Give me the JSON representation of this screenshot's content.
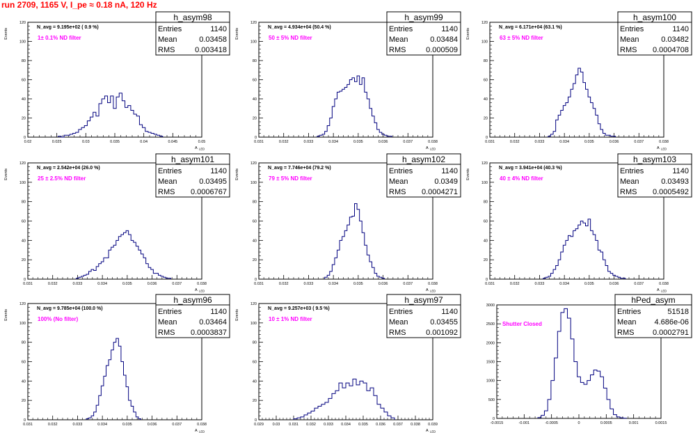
{
  "run_title": "run 2709,  1165 V, I_pe ≈ 0.18 nA, 120 Hz",
  "colors": {
    "histogram": "#00007f",
    "annotation": "#ff00ff",
    "title": "#ff0000",
    "text": "#000000"
  },
  "chart_data": [
    {
      "type": "histogram",
      "name": "h_asym98",
      "header": "N_avg = 9.195e+02 ( 0.9 %)",
      "filter_label": "1± 0.1% ND filter",
      "ylabel": "Events",
      "xlabel": "A",
      "xlabel_sub": "LED",
      "xlim": [
        0.02,
        0.05
      ],
      "ylim": [
        0,
        120
      ],
      "xticks": [
        "0.02",
        "0.025",
        "0.03",
        "0.035",
        "0.04",
        "0.045",
        "0.05"
      ],
      "xtick_values": [
        0.02,
        0.025,
        0.03,
        0.035,
        0.04,
        0.045,
        0.05
      ],
      "yticks": [
        "0",
        "20",
        "40",
        "60",
        "80",
        "100",
        "120"
      ],
      "ytick_values": [
        0,
        20,
        40,
        60,
        80,
        100,
        120
      ],
      "stats": [
        [
          "Entries",
          "1140"
        ],
        [
          "Mean",
          "0.03458"
        ],
        [
          "RMS",
          "0.003418"
        ]
      ],
      "x": [
        0.0255,
        0.026,
        0.0265,
        0.027,
        0.0275,
        0.028,
        0.0285,
        0.029,
        0.0295,
        0.03,
        0.0305,
        0.031,
        0.0315,
        0.032,
        0.0325,
        0.033,
        0.0335,
        0.034,
        0.0345,
        0.035,
        0.0355,
        0.036,
        0.0365,
        0.037,
        0.0375,
        0.038,
        0.0385,
        0.039,
        0.0395,
        0.04,
        0.0405,
        0.041,
        0.0415,
        0.042,
        0.0425,
        0.043
      ],
      "values": [
        1,
        0,
        2,
        2,
        3,
        4,
        5,
        8,
        10,
        12,
        17,
        21,
        26,
        22,
        35,
        40,
        43,
        36,
        43,
        30,
        42,
        46,
        38,
        31,
        33,
        28,
        24,
        22,
        13,
        10,
        6,
        5,
        4,
        3,
        2,
        1
      ]
    },
    {
      "type": "histogram",
      "name": "h_asym99",
      "header": "N_avg = 4.934e+04 (50.4 %)",
      "filter_label": "50 ± 5% ND filter",
      "ylabel": "Events",
      "xlabel": "A",
      "xlabel_sub": "LED",
      "xlim": [
        0.031,
        0.038
      ],
      "ylim": [
        0,
        120
      ],
      "xticks": [
        "0.031",
        "0.032",
        "0.033",
        "0.034",
        "0.035",
        "0.036",
        "0.037",
        "0.038"
      ],
      "xtick_values": [
        0.031,
        0.032,
        0.033,
        0.034,
        0.035,
        0.036,
        0.037,
        0.038
      ],
      "yticks": [
        "0",
        "20",
        "40",
        "60",
        "80",
        "100",
        "120"
      ],
      "ytick_values": [
        0,
        20,
        40,
        60,
        80,
        100,
        120
      ],
      "stats": [
        [
          "Entries",
          "1140"
        ],
        [
          "Mean",
          "0.03484"
        ],
        [
          "RMS",
          "0.000509"
        ]
      ],
      "x": [
        0.0334,
        0.0335,
        0.0336,
        0.0337,
        0.0338,
        0.0339,
        0.034,
        0.0341,
        0.0342,
        0.0343,
        0.0344,
        0.0345,
        0.0346,
        0.0347,
        0.0348,
        0.0349,
        0.035,
        0.0351,
        0.0352,
        0.0353,
        0.0354,
        0.0355,
        0.0356,
        0.0357,
        0.0358,
        0.0359,
        0.036,
        0.0361,
        0.0362,
        0.0363
      ],
      "values": [
        1,
        2,
        3,
        6,
        12,
        20,
        32,
        40,
        47,
        48,
        50,
        52,
        55,
        60,
        62,
        58,
        64,
        55,
        62,
        47,
        40,
        30,
        22,
        15,
        8,
        5,
        3,
        2,
        1,
        1
      ]
    },
    {
      "type": "histogram",
      "name": "h_asym100",
      "header": "N_avg = 6.171e+04 (63.1 %)",
      "filter_label": "63 ± 5% ND filter",
      "ylabel": "Events",
      "xlabel": "A",
      "xlabel_sub": "LED",
      "xlim": [
        0.031,
        0.038
      ],
      "ylim": [
        0,
        120
      ],
      "xticks": [
        "0.031",
        "0.032",
        "0.033",
        "0.034",
        "0.035",
        "0.036",
        "0.037",
        "0.038"
      ],
      "xtick_values": [
        0.031,
        0.032,
        0.033,
        0.034,
        0.035,
        0.036,
        0.037,
        0.038
      ],
      "yticks": [
        "0",
        "20",
        "40",
        "60",
        "80",
        "100",
        "120"
      ],
      "ytick_values": [
        0,
        20,
        40,
        60,
        80,
        100,
        120
      ],
      "stats": [
        [
          "Entries",
          "1140"
        ],
        [
          "Mean",
          "0.03482"
        ],
        [
          "RMS",
          "0.0004708"
        ]
      ],
      "x": [
        0.0334,
        0.0335,
        0.0336,
        0.0337,
        0.0338,
        0.0339,
        0.034,
        0.0341,
        0.0342,
        0.0343,
        0.0344,
        0.0345,
        0.0346,
        0.0347,
        0.0348,
        0.0349,
        0.035,
        0.0351,
        0.0352,
        0.0353,
        0.0354,
        0.0355,
        0.0356,
        0.0357,
        0.0358,
        0.0359,
        0.036
      ],
      "values": [
        1,
        3,
        6,
        18,
        23,
        28,
        33,
        36,
        42,
        50,
        56,
        65,
        72,
        68,
        57,
        50,
        42,
        36,
        30,
        23,
        14,
        8,
        4,
        2,
        2,
        1,
        1
      ]
    },
    {
      "type": "histogram",
      "name": "h_asym101",
      "header": "N_avg = 2.542e+04 (26.0 %)",
      "filter_label": "25 ± 2.5% ND filter",
      "ylabel": "Events",
      "xlabel": "A",
      "xlabel_sub": "LED",
      "xlim": [
        0.031,
        0.038
      ],
      "ylim": [
        0,
        120
      ],
      "xticks": [
        "0.031",
        "0.032",
        "0.033",
        "0.034",
        "0.035",
        "0.036",
        "0.037",
        "0.038"
      ],
      "xtick_values": [
        0.031,
        0.032,
        0.033,
        0.034,
        0.035,
        0.036,
        0.037,
        0.038
      ],
      "yticks": [
        "0",
        "20",
        "40",
        "60",
        "80",
        "100",
        "120"
      ],
      "ytick_values": [
        0,
        20,
        40,
        60,
        80,
        100,
        120
      ],
      "stats": [
        [
          "Entries",
          "1140"
        ],
        [
          "Mean",
          "0.03495"
        ],
        [
          "RMS",
          "0.0006767"
        ]
      ],
      "x": [
        0.033,
        0.0331,
        0.0332,
        0.0333,
        0.0334,
        0.0335,
        0.0336,
        0.0337,
        0.0338,
        0.0339,
        0.034,
        0.0341,
        0.0342,
        0.0343,
        0.0344,
        0.0345,
        0.0346,
        0.0347,
        0.0348,
        0.0349,
        0.035,
        0.0351,
        0.0352,
        0.0353,
        0.0354,
        0.0355,
        0.0356,
        0.0357,
        0.0358,
        0.0359,
        0.036,
        0.0361,
        0.0362,
        0.0363,
        0.0364,
        0.0365,
        0.0366,
        0.0367
      ],
      "values": [
        1,
        2,
        3,
        4,
        5,
        8,
        10,
        9,
        13,
        16,
        18,
        22,
        22,
        30,
        33,
        35,
        40,
        44,
        46,
        48,
        50,
        46,
        40,
        38,
        34,
        30,
        26,
        22,
        16,
        12,
        10,
        6,
        6,
        4,
        3,
        2,
        1,
        1
      ]
    },
    {
      "type": "histogram",
      "name": "h_asym102",
      "header": "N_avg = 7.746e+04 (79.2 %)",
      "filter_label": "79 ± 5% ND filter",
      "ylabel": "Events",
      "xlabel": "A",
      "xlabel_sub": "LED",
      "xlim": [
        0.031,
        0.038
      ],
      "ylim": [
        0,
        120
      ],
      "xticks": [
        "0.031",
        "0.032",
        "0.033",
        "0.034",
        "0.035",
        "0.036",
        "0.037",
        "0.038"
      ],
      "xtick_values": [
        0.031,
        0.032,
        0.033,
        0.034,
        0.035,
        0.036,
        0.037,
        0.038
      ],
      "yticks": [
        "0",
        "20",
        "40",
        "60",
        "80",
        "100",
        "120"
      ],
      "ytick_values": [
        0,
        20,
        40,
        60,
        80,
        100,
        120
      ],
      "stats": [
        [
          "Entries",
          "1140"
        ],
        [
          "Mean",
          "0.0349"
        ],
        [
          "RMS",
          "0.0004271"
        ]
      ],
      "x": [
        0.0337,
        0.0338,
        0.0339,
        0.034,
        0.0341,
        0.0342,
        0.0343,
        0.0344,
        0.0345,
        0.0346,
        0.0347,
        0.0348,
        0.0349,
        0.035,
        0.0351,
        0.0352,
        0.0353,
        0.0354,
        0.0355,
        0.0356,
        0.0357,
        0.0358,
        0.0359,
        0.036
      ],
      "values": [
        2,
        4,
        8,
        15,
        22,
        30,
        40,
        44,
        50,
        56,
        64,
        65,
        78,
        72,
        60,
        48,
        35,
        25,
        18,
        12,
        6,
        3,
        2,
        1
      ]
    },
    {
      "type": "histogram",
      "name": "h_asym103",
      "header": "N_avg = 3.941e+04 (40.3 %)",
      "filter_label": "40 ± 4% ND filter",
      "ylabel": "Events",
      "xlabel": "A",
      "xlabel_sub": "LED",
      "xlim": [
        0.031,
        0.038
      ],
      "ylim": [
        0,
        120
      ],
      "xticks": [
        "0.031",
        "0.032",
        "0.033",
        "0.034",
        "0.035",
        "0.036",
        "0.037",
        "0.038"
      ],
      "xtick_values": [
        0.031,
        0.032,
        0.033,
        0.034,
        0.035,
        0.036,
        0.037,
        0.038
      ],
      "yticks": [
        "0",
        "20",
        "40",
        "60",
        "80",
        "100",
        "120"
      ],
      "ytick_values": [
        0,
        20,
        40,
        60,
        80,
        100,
        120
      ],
      "stats": [
        [
          "Entries",
          "1140"
        ],
        [
          "Mean",
          "0.03493"
        ],
        [
          "RMS",
          "0.0005492"
        ]
      ],
      "x": [
        0.0332,
        0.0333,
        0.0334,
        0.0335,
        0.0336,
        0.0337,
        0.0338,
        0.0339,
        0.034,
        0.0341,
        0.0342,
        0.0343,
        0.0344,
        0.0345,
        0.0346,
        0.0347,
        0.0348,
        0.0349,
        0.035,
        0.0351,
        0.0352,
        0.0353,
        0.0354,
        0.0355,
        0.0356,
        0.0357,
        0.0358,
        0.0359,
        0.036,
        0.0361,
        0.0362,
        0.0363,
        0.0364
      ],
      "values": [
        1,
        2,
        3,
        6,
        10,
        14,
        20,
        28,
        35,
        40,
        45,
        44,
        50,
        52,
        56,
        60,
        58,
        55,
        62,
        50,
        46,
        40,
        30,
        28,
        20,
        14,
        8,
        6,
        4,
        3,
        2,
        1,
        1
      ]
    },
    {
      "type": "histogram",
      "name": "h_asym96",
      "header": "N_avg = 9.785e+04 (100.0 %)",
      "filter_label": "100% (No filter)",
      "ylabel": "Events",
      "xlabel": "A",
      "xlabel_sub": "LED",
      "xlim": [
        0.031,
        0.038
      ],
      "ylim": [
        0,
        120
      ],
      "xticks": [
        "0.031",
        "0.032",
        "0.033",
        "0.034",
        "0.035",
        "0.036",
        "0.037",
        "0.038"
      ],
      "xtick_values": [
        0.031,
        0.032,
        0.033,
        0.034,
        0.035,
        0.036,
        0.037,
        0.038
      ],
      "yticks": [
        "0",
        "20",
        "40",
        "60",
        "80",
        "100",
        "120"
      ],
      "ytick_values": [
        0,
        20,
        40,
        60,
        80,
        100,
        120
      ],
      "stats": [
        [
          "Entries",
          "1140"
        ],
        [
          "Mean",
          "0.03464"
        ],
        [
          "RMS",
          "0.0003837"
        ]
      ],
      "x": [
        0.0334,
        0.0335,
        0.0336,
        0.0337,
        0.0338,
        0.0339,
        0.034,
        0.0341,
        0.0342,
        0.0343,
        0.0344,
        0.0345,
        0.0346,
        0.0347,
        0.0348,
        0.0349,
        0.035,
        0.0351,
        0.0352,
        0.0353,
        0.0354,
        0.0355
      ],
      "values": [
        1,
        2,
        4,
        8,
        15,
        25,
        35,
        45,
        56,
        62,
        72,
        80,
        84,
        76,
        60,
        46,
        34,
        20,
        14,
        8,
        3,
        1
      ]
    },
    {
      "type": "histogram",
      "name": "h_asym97",
      "header": "N_avg = 9.257e+03 ( 9.5 %)",
      "filter_label": "10 ± 1% ND filter",
      "ylabel": "Events",
      "xlabel": "A",
      "xlabel_sub": "LED",
      "xlim": [
        0.029,
        0.039
      ],
      "ylim": [
        0,
        120
      ],
      "xticks": [
        "0.029",
        "0.03",
        "0.031",
        "0.032",
        "0.033",
        "0.034",
        "0.035",
        "0.036",
        "0.037",
        "0.038",
        "0.039"
      ],
      "xtick_values": [
        0.029,
        0.03,
        0.031,
        0.032,
        0.033,
        0.034,
        0.035,
        0.036,
        0.037,
        0.038,
        0.039
      ],
      "yticks": [
        "0",
        "20",
        "40",
        "60",
        "80",
        "100",
        "120"
      ],
      "ytick_values": [
        0,
        20,
        40,
        60,
        80,
        100,
        120
      ],
      "stats": [
        [
          "Entries",
          "1140"
        ],
        [
          "Mean",
          "0.03455"
        ],
        [
          "RMS",
          "0.001092"
        ]
      ],
      "x": [
        0.0311,
        0.0313,
        0.0315,
        0.0317,
        0.0319,
        0.0321,
        0.0323,
        0.0325,
        0.0327,
        0.0329,
        0.0331,
        0.0333,
        0.0335,
        0.0337,
        0.0339,
        0.0341,
        0.0343,
        0.0345,
        0.0347,
        0.0349,
        0.0351,
        0.0353,
        0.0355,
        0.0357,
        0.0359,
        0.0361,
        0.0363,
        0.0365,
        0.0367
      ],
      "values": [
        1,
        2,
        3,
        5,
        7,
        9,
        12,
        14,
        16,
        18,
        22,
        27,
        30,
        38,
        33,
        38,
        35,
        42,
        36,
        40,
        38,
        30,
        33,
        25,
        16,
        12,
        8,
        4,
        2
      ]
    },
    {
      "type": "histogram",
      "name": "hPed_asym",
      "header": "",
      "filter_label": "Shutter Closed",
      "ylabel": "",
      "xlabel": "",
      "xlabel_sub": "",
      "xlim": [
        -0.0015,
        0.0015
      ],
      "ylim": [
        0,
        3000
      ],
      "xticks": [
        "-0.0015",
        "-0.001",
        "-0.0005",
        "0",
        "0.0005",
        "0.001",
        "0.0015"
      ],
      "xtick_values": [
        -0.0015,
        -0.001,
        -0.0005,
        0,
        0.0005,
        0.001,
        0.0015
      ],
      "yticks": [
        "0",
        "500",
        "1000",
        "1500",
        "2000",
        "2500",
        "3000"
      ],
      "ytick_values": [
        0,
        500,
        1000,
        1500,
        2000,
        2500,
        3000
      ],
      "stats": [
        [
          "Entries",
          "51518"
        ],
        [
          "Mean",
          "4.686e-06"
        ],
        [
          "RMS",
          "0.0002791"
        ]
      ],
      "x": [
        -0.00072,
        -0.00066,
        -0.0006,
        -0.00054,
        -0.00048,
        -0.00042,
        -0.00036,
        -0.0003,
        -0.00024,
        -0.00018,
        -0.00012,
        -6e-05,
        0.0,
        6e-05,
        0.00012,
        0.00018,
        0.00024,
        0.0003,
        0.00036,
        0.00042,
        0.00048,
        0.00054,
        0.0006,
        0.00066,
        0.00072,
        0.00078,
        0.00084
      ],
      "values": [
        20,
        80,
        200,
        500,
        1000,
        1600,
        2300,
        2800,
        2900,
        2650,
        2100,
        1500,
        1100,
        950,
        900,
        1000,
        1150,
        1280,
        1250,
        1100,
        800,
        500,
        250,
        100,
        40,
        15,
        5
      ]
    }
  ]
}
